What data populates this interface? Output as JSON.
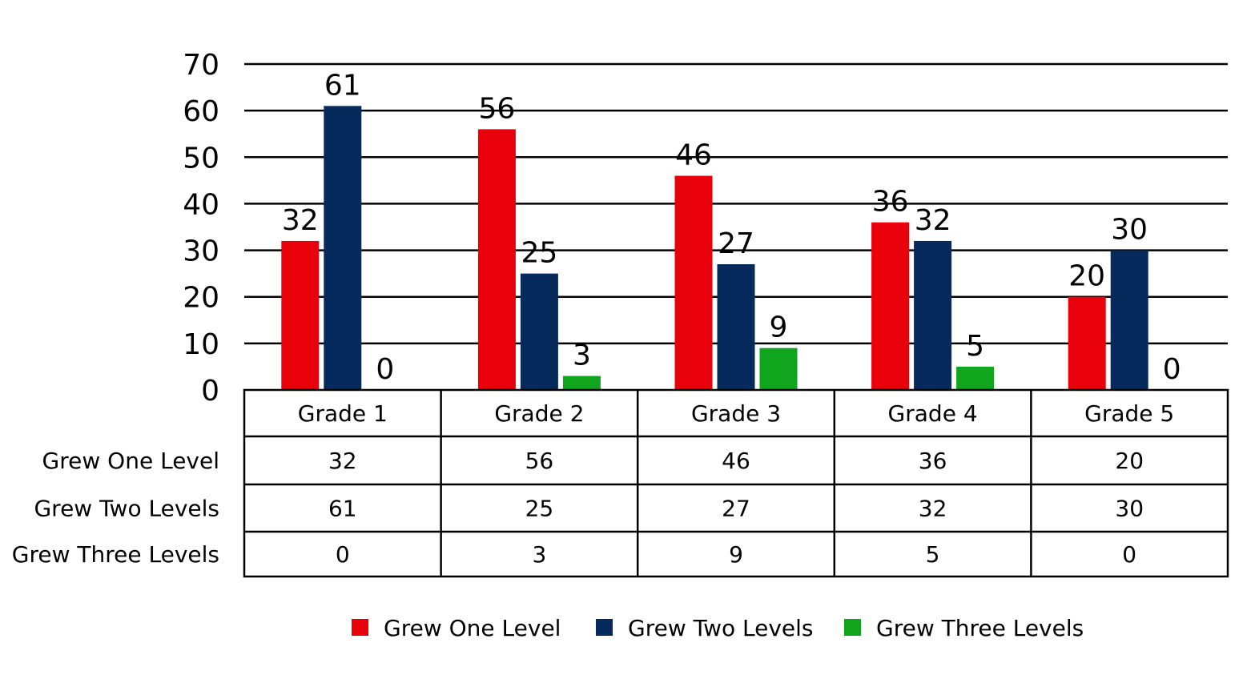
{
  "chart_data": {
    "type": "bar",
    "categories": [
      "Grade 1",
      "Grade 2",
      "Grade 3",
      "Grade 4",
      "Grade 5"
    ],
    "series": [
      {
        "name": "Grew One Level",
        "values": [
          32,
          56,
          46,
          36,
          20
        ],
        "color": "#e8000b"
      },
      {
        "name": "Grew Two Levels",
        "values": [
          61,
          25,
          27,
          32,
          30
        ],
        "color": "#062a5c"
      },
      {
        "name": "Grew Three Levels",
        "values": [
          0,
          3,
          9,
          5,
          0
        ],
        "color": "#10a51c"
      }
    ],
    "ylim": [
      0,
      70
    ],
    "yticks": [
      0,
      10,
      20,
      30,
      40,
      50,
      60,
      70
    ],
    "grid": true,
    "data_labels": true,
    "data_table": true,
    "legend": "bottom"
  }
}
